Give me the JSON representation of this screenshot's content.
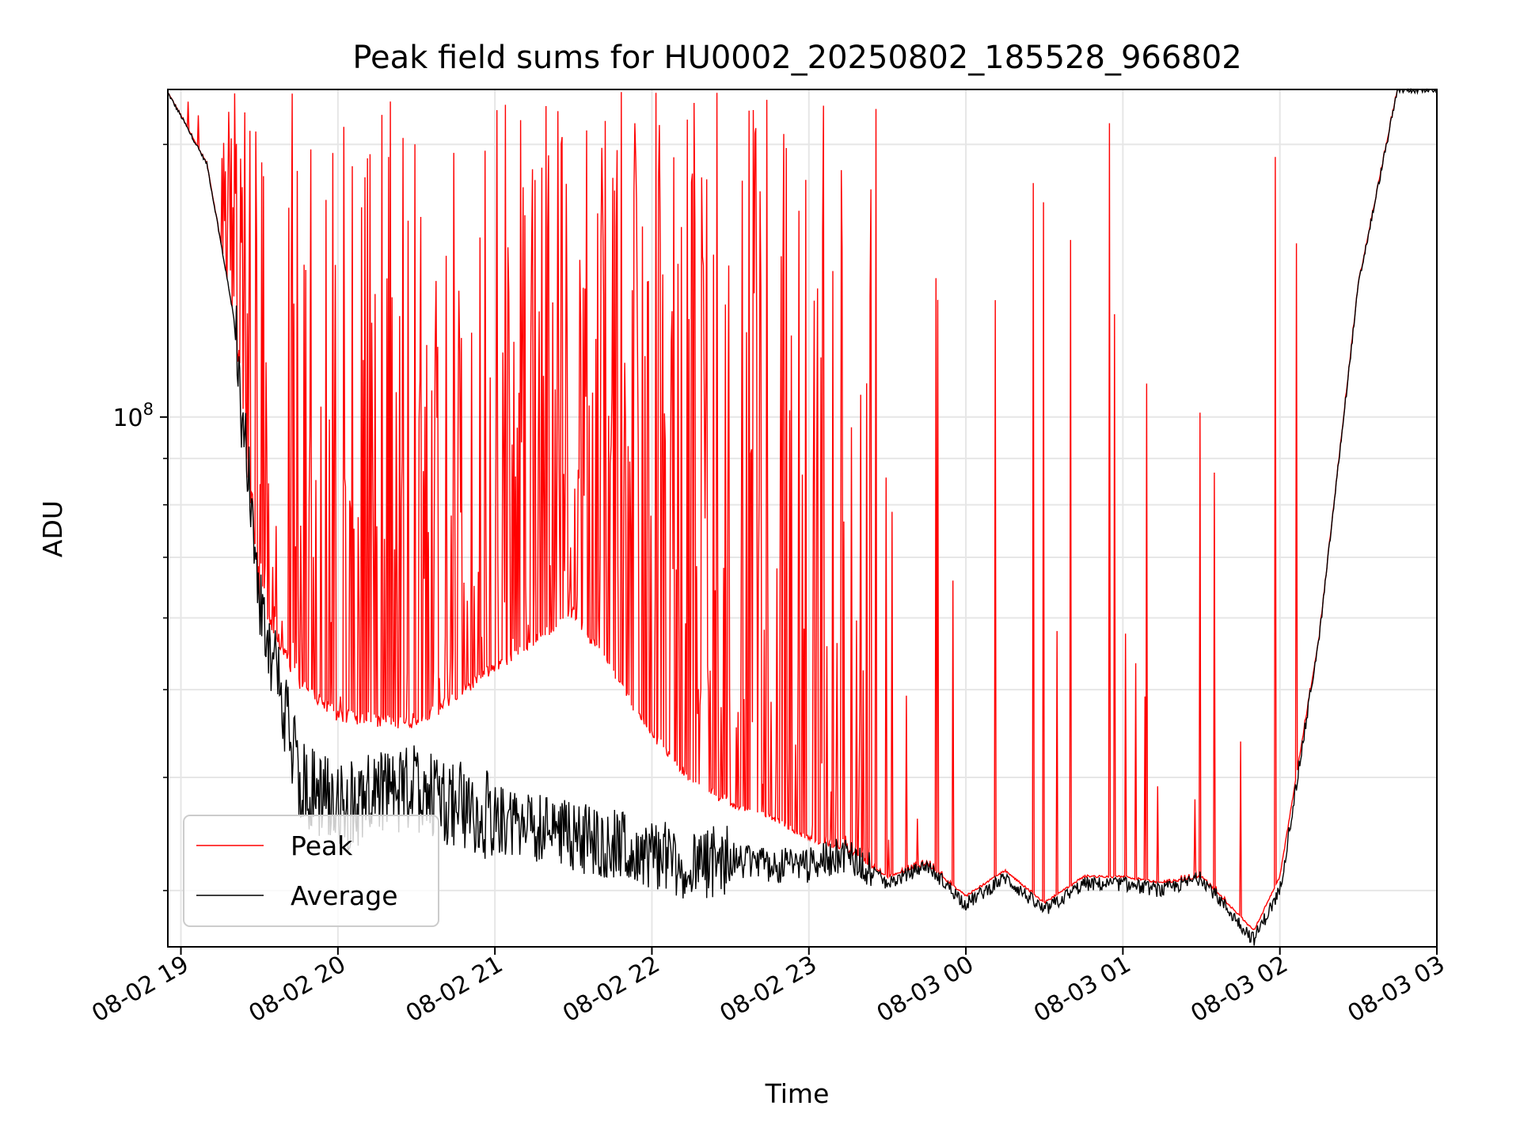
{
  "chart_data": {
    "type": "line",
    "title": "Peak field sums for HU0002_20250802_185528_966802",
    "xlabel": "Time",
    "ylabel": "ADU",
    "y_scale": "log",
    "ylim": [
      26000000,
      230000000
    ],
    "xlim": [
      "08-02 18:55",
      "08-03 03:00"
    ],
    "grid": true,
    "legend_position": "lower-left",
    "x_ticks": [
      "08-02 19",
      "08-02 20",
      "08-02 21",
      "08-02 22",
      "08-02 23",
      "08-03 00",
      "08-03 01",
      "08-03 02",
      "08-03 03"
    ],
    "y_tick_labels": [
      {
        "base": "10",
        "exponent": "8",
        "value": 100000000
      }
    ],
    "y_minor_ticks": [
      30000000,
      40000000,
      50000000,
      60000000,
      70000000,
      80000000,
      90000000,
      200000000
    ],
    "series": [
      {
        "name": "Peak",
        "color": "#ff0000",
        "x": [
          "18:55",
          "19:00",
          "19:10",
          "19:20",
          "19:30",
          "19:45",
          "20:00",
          "20:30",
          "21:00",
          "21:30",
          "22:00",
          "22:15",
          "22:30",
          "22:45",
          "23:00",
          "23:15",
          "23:30",
          "23:45",
          "00:00",
          "00:15",
          "00:30",
          "00:45",
          "01:00",
          "01:15",
          "01:30",
          "01:45",
          "01:50",
          "02:00",
          "02:15",
          "02:30",
          "02:45",
          "03:00"
        ],
        "values": [
          228000000,
          215000000,
          190000000,
          130000000,
          62000000,
          50000000,
          46000000,
          45000000,
          52000000,
          60000000,
          44000000,
          39000000,
          37000000,
          36000000,
          34000000,
          33000000,
          31000000,
          32000000,
          29500000,
          31500000,
          29000000,
          31000000,
          31000000,
          30500000,
          31000000,
          28000000,
          27000000,
          31000000,
          57000000,
          140000000,
          230000000,
          230000000
        ]
      },
      {
        "name": "Average",
        "color": "#000000",
        "x": [
          "18:55",
          "19:00",
          "19:10",
          "19:20",
          "19:30",
          "19:45",
          "20:00",
          "20:30",
          "21:00",
          "21:30",
          "22:00",
          "22:15",
          "22:30",
          "22:45",
          "23:00",
          "23:15",
          "23:30",
          "23:45",
          "00:00",
          "00:15",
          "00:30",
          "00:45",
          "01:00",
          "01:15",
          "01:30",
          "01:45",
          "01:50",
          "02:00",
          "02:15",
          "02:30",
          "02:45",
          "03:00"
        ],
        "values": [
          228000000,
          215000000,
          190000000,
          130000000,
          62000000,
          40000000,
          37000000,
          39000000,
          36000000,
          34500000,
          33000000,
          32000000,
          32500000,
          32000000,
          32000000,
          33000000,
          30500000,
          32000000,
          29000000,
          31000000,
          28500000,
          30500000,
          30500000,
          30000000,
          31000000,
          27500000,
          26500000,
          30000000,
          57000000,
          140000000,
          230000000,
          230000000
        ]
      }
    ]
  }
}
